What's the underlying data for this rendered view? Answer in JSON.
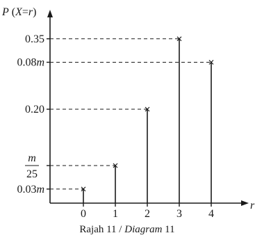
{
  "chart_data": {
    "type": "bar",
    "ylabel": "P (X=r)",
    "xlabel": "r",
    "categories": [
      "0",
      "1",
      "2",
      "3",
      "4"
    ],
    "values": [
      0.03,
      0.08,
      0.2,
      0.35,
      0.3
    ],
    "ylim": [
      0,
      0.4
    ],
    "y_ticks": [
      {
        "value": 0.03,
        "label": "0.03m"
      },
      {
        "value": 0.08,
        "label": "m/25"
      },
      {
        "value": 0.2,
        "label": "0.20"
      },
      {
        "value": 0.3,
        "label": "0.08m"
      },
      {
        "value": 0.35,
        "label": "0.35"
      }
    ],
    "fraction_tick": {
      "numerator": "m",
      "denominator": "25"
    },
    "caption": {
      "main": "Rajah 11 / ",
      "italic": "Diagram",
      "suffix": " 11"
    },
    "grid": false,
    "style": "vertical lines with x markers and dashed guides"
  }
}
